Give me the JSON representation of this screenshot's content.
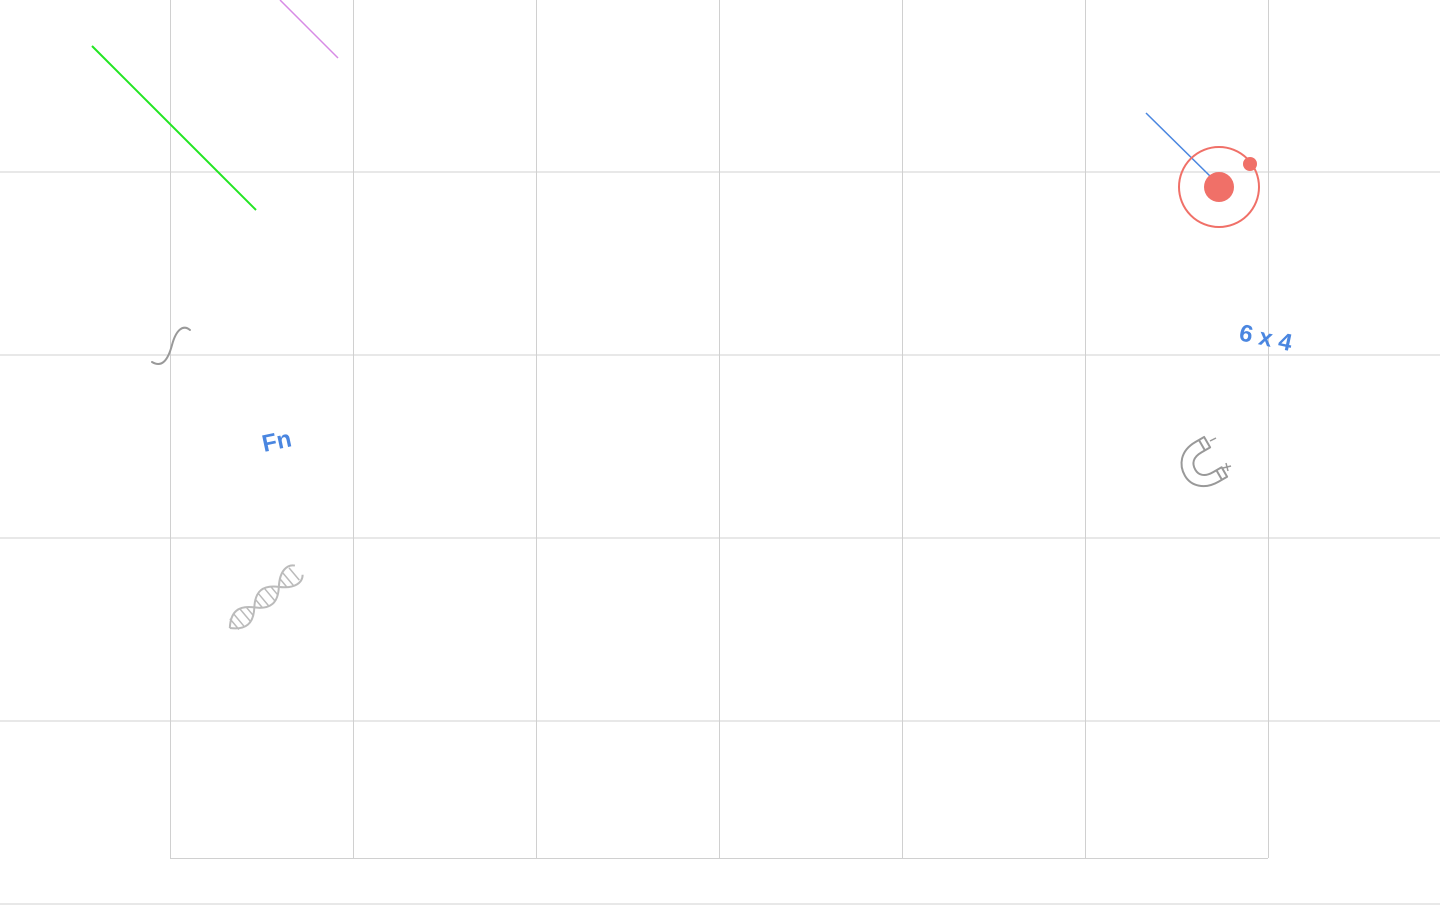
{
  "canvas": {
    "background": "#ffffff",
    "grid_color": "#d0d0d0",
    "grid_columns": 6,
    "grid_rows": 5
  },
  "decorations": {
    "lines": [
      {
        "name": "green-line",
        "color": "#22e622"
      },
      {
        "name": "violet-line",
        "color": "#d78be6"
      },
      {
        "name": "blue-line",
        "color": "#4a86e0"
      }
    ],
    "target": {
      "color": "#f07068"
    },
    "labels": {
      "fn": {
        "text": "Fn",
        "color": "#4a86e0"
      },
      "size": {
        "text": "6 x 4",
        "color": "#4a86e0"
      }
    },
    "icons": [
      {
        "name": "integral-icon",
        "color": "#999999"
      },
      {
        "name": "dna-icon",
        "color": "#bbbbbb"
      },
      {
        "name": "magnet-icon",
        "color": "#999999"
      }
    ]
  }
}
